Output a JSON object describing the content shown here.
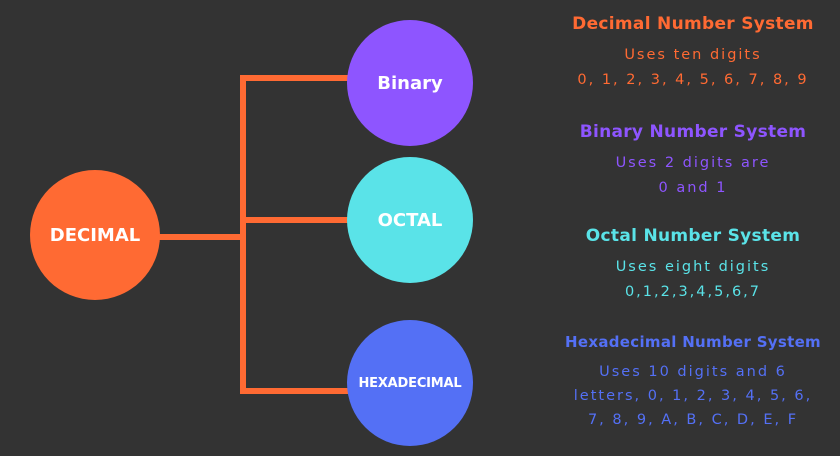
{
  "colors": {
    "background": "#333333",
    "connector": "#ff6a33",
    "decimal": "#ff6a33",
    "binary": "#8e55ff",
    "octal": "#5ae3e8",
    "hexadecimal": "#5470f5"
  },
  "nodes": {
    "decimal": "DECIMAL",
    "binary": "Binary",
    "octal": "OCTAL",
    "hexadecimal": "HEXADECIMAL"
  },
  "descriptions": {
    "decimal": {
      "title": "Decimal Number System",
      "lines": [
        "Uses ten digits",
        "0, 1, 2, 3, 4, 5, 6, 7, 8, 9"
      ]
    },
    "binary": {
      "title": "Binary Number System",
      "lines": [
        "Uses 2 digits are",
        "0 and 1"
      ]
    },
    "octal": {
      "title": "Octal Number System",
      "lines": [
        "Uses eight digits",
        "0,1,2,3,4,5,6,7"
      ]
    },
    "hexadecimal": {
      "title": "Hexadecimal Number System",
      "lines": [
        "Uses 10 digits and 6",
        "letters, 0, 1, 2, 3, 4, 5, 6,",
        "7, 8, 9, A, B, C, D, E, F"
      ]
    }
  }
}
